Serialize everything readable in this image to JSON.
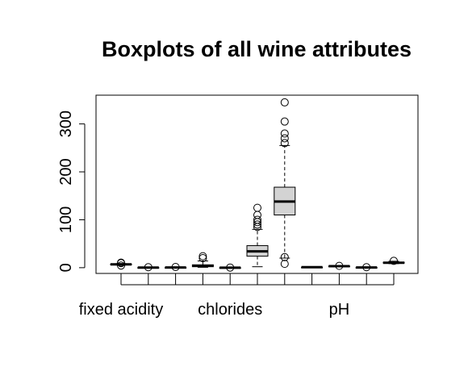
{
  "chart_data": {
    "type": "boxplot",
    "title": "Boxplots of all wine attributes",
    "xlabel": "",
    "ylabel": "",
    "ylim": [
      -12,
      360
    ],
    "yticks": [
      0,
      100,
      200,
      300
    ],
    "xlabels_shown": [
      {
        "index": 0,
        "label": "fixed acidity"
      },
      {
        "index": 4,
        "label": "chlorides"
      },
      {
        "index": 8,
        "label": "pH"
      }
    ],
    "box_fill": "#d3d3d3",
    "series": [
      {
        "min": 5.5,
        "q1": 6.5,
        "median": 7.0,
        "q3": 7.5,
        "max": 8.5,
        "outliers": [
          4.5,
          9.5,
          10.5
        ]
      },
      {
        "min": 0.2,
        "q1": 0.25,
        "median": 0.3,
        "q3": 0.35,
        "max": 0.45,
        "outliers": [
          1.0
        ]
      },
      {
        "min": 0.1,
        "q1": 0.3,
        "median": 0.35,
        "q3": 0.4,
        "max": 0.6,
        "outliers": [
          1.5
        ]
      },
      {
        "min": 0.8,
        "q1": 2.0,
        "median": 4.0,
        "q3": 6.0,
        "max": 14.0,
        "outliers": [
          20.0,
          24.0
        ]
      },
      {
        "min": 0.02,
        "q1": 0.04,
        "median": 0.045,
        "q3": 0.05,
        "max": 0.08,
        "outliers": [
          0.3
        ]
      },
      {
        "min": 2,
        "q1": 24,
        "median": 34,
        "q3": 46,
        "max": 80,
        "outliers": [
          85,
          90,
          95,
          100,
          110,
          125
        ]
      },
      {
        "min": 20,
        "q1": 110,
        "median": 138,
        "q3": 168,
        "max": 255,
        "outliers": [
          8,
          22,
          260,
          270,
          280,
          305,
          345
        ]
      },
      {
        "min": 0.98,
        "q1": 0.99,
        "median": 0.994,
        "q3": 0.996,
        "max": 1.0,
        "outliers": []
      },
      {
        "min": 2.8,
        "q1": 3.1,
        "median": 3.2,
        "q3": 3.3,
        "max": 3.6,
        "outliers": [
          3.8
        ]
      },
      {
        "min": 0.3,
        "q1": 0.4,
        "median": 0.5,
        "q3": 0.55,
        "max": 0.75,
        "outliers": [
          1.0
        ]
      },
      {
        "min": 8.5,
        "q1": 9.5,
        "median": 10.4,
        "q3": 11.4,
        "max": 13.5,
        "outliers": [
          14.2
        ]
      }
    ]
  }
}
